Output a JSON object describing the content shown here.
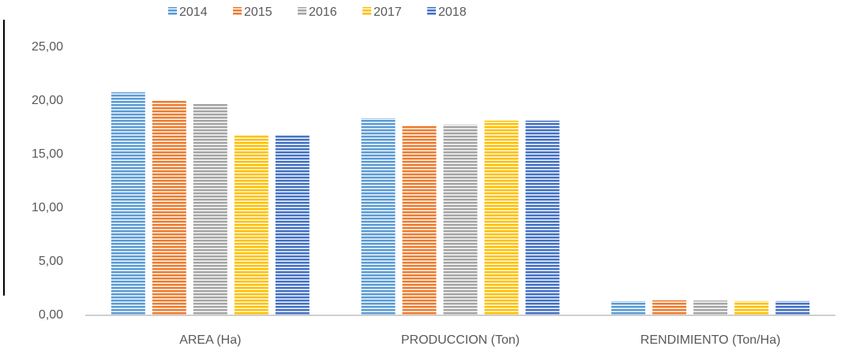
{
  "chart_data": {
    "type": "bar",
    "categories": [
      "AREA (Ha)",
      "PRODUCCION (Ton)",
      "RENDIMIENTO (Ton/Ha)"
    ],
    "series": [
      {
        "name": "2014",
        "color": "#5b9bd5",
        "values": [
          20.8,
          18.38,
          1.32
        ]
      },
      {
        "name": "2015",
        "color": "#ed7d31",
        "values": [
          20.07,
          17.65,
          1.4
        ]
      },
      {
        "name": "2016",
        "color": "#a5a5a5",
        "values": [
          19.78,
          17.79,
          1.38
        ]
      },
      {
        "name": "2017",
        "color": "#ffc000",
        "values": [
          16.76,
          18.16,
          1.33
        ]
      },
      {
        "name": "2018",
        "color": "#4472c4",
        "values": [
          16.76,
          18.16,
          1.33
        ]
      }
    ],
    "ylim": [
      0,
      25
    ],
    "yticks": [
      {
        "value": 0,
        "label": "0,00"
      },
      {
        "value": 5,
        "label": "5,00"
      },
      {
        "value": 10,
        "label": "10,00"
      },
      {
        "value": 15,
        "label": "15,00"
      },
      {
        "value": 20,
        "label": "20,00"
      },
      {
        "value": 25,
        "label": "25,00"
      }
    ],
    "grid": false,
    "legend": "top"
  }
}
